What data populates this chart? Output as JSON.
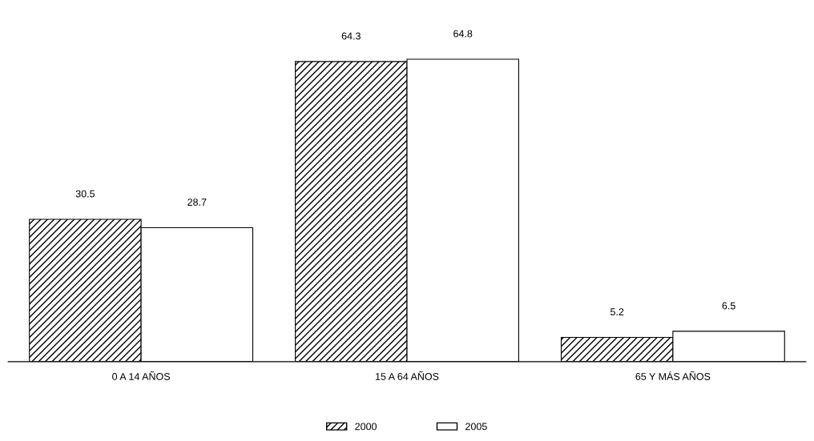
{
  "chart_data": {
    "type": "bar",
    "categories": [
      "0 A 14 AÑOS",
      "15 A 64 AÑOS",
      "65 Y MÁS AÑOS"
    ],
    "series": [
      {
        "name": "2000",
        "color": "#000000",
        "values": [
          30.5,
          64.3,
          5.2
        ]
      },
      {
        "name": "2005",
        "color": "#ffffff",
        "values": [
          28.7,
          64.8,
          6.5
        ]
      }
    ],
    "data_labels": true,
    "legend": "bottom",
    "grid": false
  }
}
